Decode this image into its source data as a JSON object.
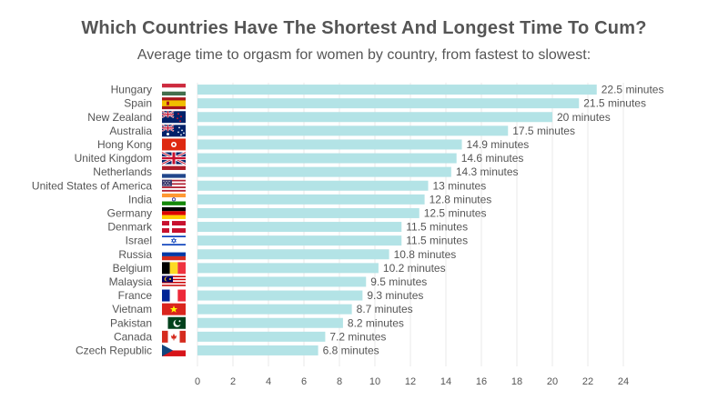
{
  "chart_data": {
    "type": "bar",
    "orientation": "horizontal",
    "title": "Which Countries Have The Shortest And Longest Time To Cum?",
    "subtitle": "Average time to orgasm for women by country, from fastest to slowest:",
    "value_suffix": " minutes",
    "categories": [
      "Hungary",
      "Spain",
      "New Zealand",
      "Australia",
      "Hong Kong",
      "United Kingdom",
      "Netherlands",
      "United States of America",
      "India",
      "Germany",
      "Denmark",
      "Israel",
      "Russia",
      "Belgium",
      "Malaysia",
      "France",
      "Vietnam",
      "Pakistan",
      "Canada",
      "Czech Republic"
    ],
    "values": [
      22.5,
      21.5,
      20,
      17.5,
      14.9,
      14.6,
      14.3,
      13,
      12.8,
      12.5,
      11.5,
      11.5,
      10.8,
      10.2,
      9.5,
      9.3,
      8.7,
      8.2,
      7.2,
      6.8
    ],
    "flag_icons": [
      "flag-hungary-icon",
      "flag-spain-icon",
      "flag-new-zealand-icon",
      "flag-australia-icon",
      "flag-hong-kong-icon",
      "flag-united-kingdom-icon",
      "flag-netherlands-icon",
      "flag-usa-icon",
      "flag-india-icon",
      "flag-germany-icon",
      "flag-denmark-icon",
      "flag-israel-icon",
      "flag-russia-icon",
      "flag-belgium-icon",
      "flag-malaysia-icon",
      "flag-france-icon",
      "flag-vietnam-icon",
      "flag-pakistan-icon",
      "flag-canada-icon",
      "flag-czech-republic-icon"
    ],
    "xlim": [
      0,
      24
    ],
    "xticks": [
      0,
      2,
      4,
      6,
      8,
      10,
      12,
      14,
      16,
      18,
      20,
      22,
      24
    ],
    "grid": "vertical",
    "bar_color": "#b3e3e6",
    "grid_color": "#e8e8e8",
    "text_color": "#555555"
  }
}
